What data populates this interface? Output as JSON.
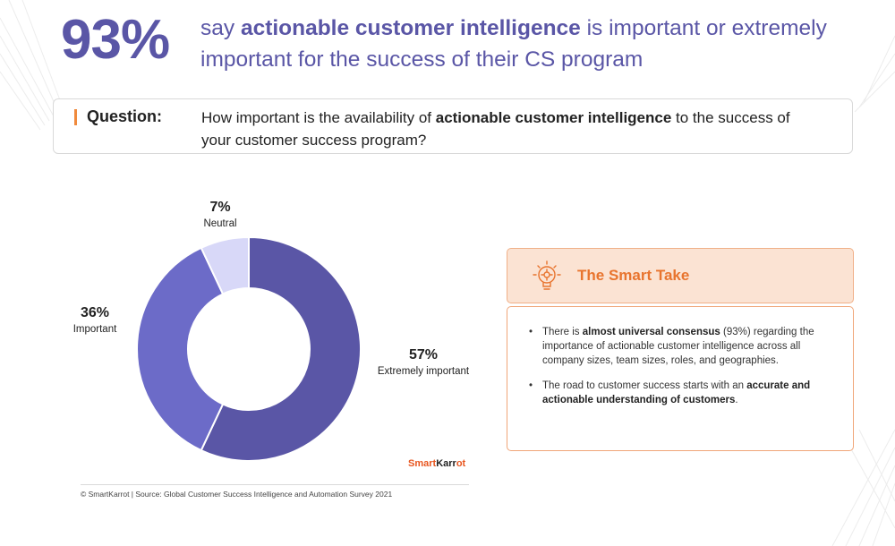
{
  "headline": {
    "stat": "93%",
    "line_prefix": "say ",
    "line_bold": "actionable customer intelligence",
    "line_suffix": " is important or extremely important for the success of their CS program"
  },
  "question": {
    "label": "Question:",
    "text_prefix": "How important is the availability of ",
    "text_bold": "actionable customer intelligence",
    "text_suffix": " to the success of your customer success program?"
  },
  "chart_data": {
    "type": "pie",
    "donut": true,
    "start": "top",
    "direction": "clockwise",
    "slices": [
      {
        "label": "Extremely important",
        "value": 57,
        "display": "57%",
        "color": "#5a56a6"
      },
      {
        "label": "Important",
        "value": 36,
        "display": "36%",
        "color": "#6c6bc8"
      },
      {
        "label": "Neutral",
        "value": 7,
        "display": "7%",
        "color": "#d8d8f8"
      }
    ],
    "legend": "none"
  },
  "brand": {
    "part1": "Smart",
    "part2": "Karr",
    "part3": "ot"
  },
  "footnote": "© SmartKarrot | Source: Global Customer Success Intelligence and Automation Survey 2021",
  "smart_take": {
    "title": "The Smart Take",
    "icon": "lightbulb-gear-icon",
    "bullets": [
      {
        "prefix": "There is ",
        "bold": "almost universal consensus",
        "suffix": " (93%) regarding the importance of actionable customer intelligence across all company sizes, team sizes, roles, and geographies."
      },
      {
        "prefix": "The road to customer success starts with an ",
        "bold": "accurate and actionable understanding of customers",
        "suffix": "."
      }
    ]
  },
  "colors": {
    "accent": "#5a56a6",
    "orange": "#e8742e",
    "take_bg": "#fbe3d3"
  }
}
